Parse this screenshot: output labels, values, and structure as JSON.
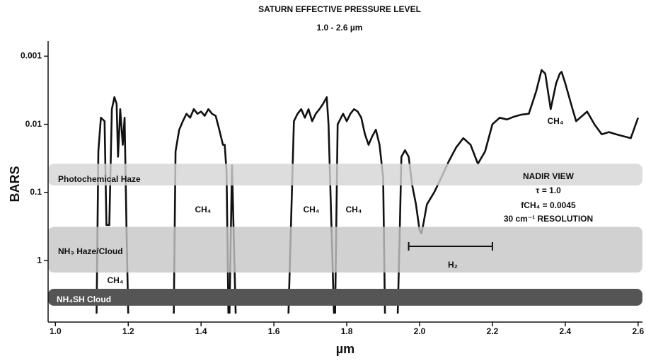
{
  "chart_data": {
    "type": "line",
    "title": "SATURN EFFECTIVE PRESSURE LEVEL",
    "subtitle": "1.0 - 2.6 µm",
    "x_label": "µm",
    "y_label": "BARS",
    "y_scale": "log",
    "color": "#111111",
    "xlim": [
      0.98,
      2.612
    ],
    "xticks": [
      {
        "value": 1.0,
        "label": "1.0"
      },
      {
        "value": 1.2,
        "label": "1.2"
      },
      {
        "value": 1.4,
        "label": "1.4"
      },
      {
        "value": 1.6,
        "label": "1.6"
      },
      {
        "value": 1.8,
        "label": "1.8"
      },
      {
        "value": 2.0,
        "label": "2.0"
      },
      {
        "value": 2.2,
        "label": "2.2"
      },
      {
        "value": 2.4,
        "label": "2.4"
      },
      {
        "value": 2.6,
        "label": "2.6"
      }
    ],
    "ylim": [
      8,
      0.0006
    ],
    "yticks": [
      0.001,
      0.01,
      0.1,
      1
    ],
    "x": [
      1.113,
      1.118,
      1.125,
      1.135,
      1.14,
      1.148,
      1.155,
      1.162,
      1.168,
      1.172,
      1.178,
      1.185,
      1.19,
      1.195,
      1.2,
      null,
      1.325,
      1.33,
      1.34,
      1.35,
      1.36,
      1.37,
      1.38,
      1.39,
      1.4,
      1.41,
      1.42,
      1.43,
      1.44,
      1.45,
      1.46,
      1.465,
      1.47,
      1.475,
      null,
      1.478,
      1.485,
      1.49,
      1.495,
      null,
      1.64,
      1.655,
      1.665,
      1.675,
      1.685,
      1.695,
      1.705,
      1.715,
      1.725,
      1.735,
      1.745,
      1.75,
      1.765,
      null,
      1.768,
      1.775,
      1.79,
      1.8,
      1.81,
      1.82,
      1.83,
      1.84,
      1.85,
      1.86,
      1.87,
      1.88,
      1.89,
      1.9,
      1.905,
      null,
      1.94,
      1.945,
      1.95,
      1.96,
      1.97,
      1.98,
      1.99,
      2.0,
      2.005,
      2.01,
      2.02,
      2.04,
      2.06,
      2.08,
      2.1,
      2.12,
      2.14,
      2.16,
      2.18,
      2.2,
      2.22,
      2.24,
      2.26,
      2.28,
      2.3,
      2.32,
      2.335,
      2.345,
      2.36,
      2.375,
      2.385,
      2.39,
      2.4,
      2.42,
      2.43,
      2.46,
      2.48,
      2.5,
      2.52,
      2.54,
      2.56,
      2.58,
      2.6
    ],
    "values": [
      6,
      0.025,
      0.008,
      0.009,
      0.3,
      0.3,
      0.006,
      0.004,
      0.005,
      0.03,
      0.006,
      0.02,
      0.008,
      0.3,
      6,
      null,
      6,
      0.025,
      0.012,
      0.009,
      0.007,
      0.008,
      0.006,
      0.007,
      0.0065,
      0.0075,
      0.006,
      0.007,
      0.0075,
      0.012,
      0.02,
      0.02,
      0.05,
      6,
      null,
      6,
      0.04,
      0.5,
      6,
      null,
      6,
      0.009,
      0.007,
      0.006,
      0.008,
      0.006,
      0.009,
      0.007,
      0.006,
      0.005,
      0.004,
      0.01,
      6,
      null,
      6,
      0.01,
      0.007,
      0.009,
      0.007,
      0.006,
      0.0065,
      0.008,
      0.014,
      0.02,
      0.015,
      0.012,
      0.02,
      0.06,
      6,
      null,
      6,
      0.5,
      0.03,
      0.024,
      0.03,
      0.08,
      0.15,
      0.36,
      0.4,
      0.3,
      0.15,
      0.1,
      0.06,
      0.035,
      0.022,
      0.016,
      0.02,
      0.038,
      0.025,
      0.01,
      0.008,
      0.0085,
      0.0077,
      0.0072,
      0.007,
      0.0033,
      0.0016,
      0.0018,
      0.006,
      0.0025,
      0.0018,
      0.0017,
      0.0025,
      0.006,
      0.009,
      0.0065,
      0.01,
      0.014,
      0.013,
      0.014,
      0.015,
      0.016,
      0.008
    ],
    "bands": [
      {
        "name": "Photochemical Haze",
        "range": [
          0.038,
          0.079
        ],
        "color": "#d4d4d4"
      },
      {
        "name": "NH₃ Haze/Cloud",
        "range": [
          0.32,
          1.5
        ],
        "color": "#c6c6c6"
      },
      {
        "name": "NH₄SH Cloud",
        "range": [
          2.6,
          4.6
        ],
        "color": "#555555"
      }
    ],
    "annotations": [
      "CH₄",
      "CH₄",
      "CH₄",
      "CH₄",
      "CH₄",
      "H₂"
    ],
    "h2_range": [
      1.97,
      2.2
    ],
    "info": [
      "NADIR VIEW",
      "τ = 1.0",
      "fCH₄ = 0.0045",
      "30 cm⁻¹ RESOLUTION"
    ]
  }
}
